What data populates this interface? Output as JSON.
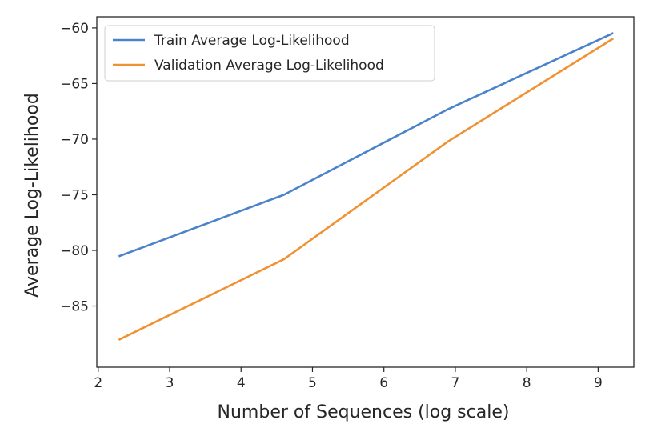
{
  "chart_data": {
    "type": "line",
    "title": "",
    "xlabel": "Number of Sequences (log scale)",
    "ylabel": "Average Log-Likelihood",
    "xlim": [
      1.98,
      9.5
    ],
    "ylim": [
      -90.5,
      -59.0
    ],
    "xticks": [
      2,
      3,
      4,
      5,
      6,
      7,
      8,
      9
    ],
    "yticks": [
      -85,
      -80,
      -75,
      -70,
      -65,
      -60
    ],
    "tick_labels_x": [
      "2",
      "3",
      "4",
      "5",
      "6",
      "7",
      "8",
      "9"
    ],
    "tick_labels_y": [
      "−85",
      "−80",
      "−75",
      "−70",
      "−65",
      "−60"
    ],
    "grid": false,
    "legend_position": "top-left",
    "series": [
      {
        "name": "Train Average Log-Likelihood",
        "color": "#4a83c8",
        "x": [
          2.3,
          4.6,
          6.9,
          9.2
        ],
        "y": [
          -80.5,
          -75.0,
          -67.3,
          -60.5
        ]
      },
      {
        "name": "Validation Average Log-Likelihood",
        "color": "#f09132",
        "x": [
          2.3,
          4.6,
          6.9,
          9.2
        ],
        "y": [
          -88.0,
          -80.8,
          -70.2,
          -61.0
        ]
      }
    ]
  }
}
